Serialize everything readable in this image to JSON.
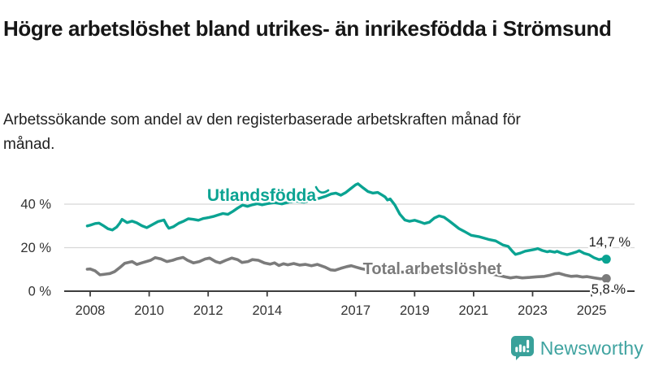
{
  "header": {
    "title": "Högre arbetslöshet bland utrikes- än inrikesfödda i Strömsund",
    "subtitle": "Arbetssökande som andel av den registerbaserade arbetskraften månad för månad."
  },
  "branding": {
    "wordmark": "Newsworthy",
    "logo_icon": "speech-bubble-bar-chart-icon",
    "logo_color": "#39a19a",
    "wordmark_color": "#3fa3a0"
  },
  "chart_data": {
    "type": "line",
    "title": "Högre arbetslöshet bland utrikes- än inrikesfödda i Strömsund",
    "subtitle": "Arbetssökande som andel av den registerbaserade arbetskraften månad för månad.",
    "grid": "horizontal",
    "legend_position": "inline-labels",
    "x_axis": {
      "ticks": [
        2008,
        2010,
        2012,
        2014,
        2017,
        2019,
        2021,
        2023,
        2025
      ],
      "range": [
        2007.1,
        2026.4
      ]
    },
    "y_axis": {
      "unit": "%",
      "tick_values": [
        0,
        20,
        40
      ],
      "tick_labels": [
        "0 %",
        "20 %",
        "40 %"
      ],
      "range": [
        0,
        55
      ]
    },
    "series": [
      {
        "name": "Utlandsfödda",
        "color": "#0aa392",
        "end_value": 14.7,
        "end_label": "14,7 %",
        "points": [
          [
            2007.9,
            30.0
          ],
          [
            2008.0,
            30.3
          ],
          [
            2008.17,
            31.1
          ],
          [
            2008.3,
            31.3
          ],
          [
            2008.45,
            30.1
          ],
          [
            2008.6,
            28.7
          ],
          [
            2008.75,
            28.1
          ],
          [
            2008.9,
            29.5
          ],
          [
            2009.0,
            31.2
          ],
          [
            2009.08,
            33.0
          ],
          [
            2009.25,
            31.5
          ],
          [
            2009.42,
            32.2
          ],
          [
            2009.58,
            31.4
          ],
          [
            2009.75,
            30.1
          ],
          [
            2009.92,
            29.2
          ],
          [
            2010.1,
            30.5
          ],
          [
            2010.3,
            32.0
          ],
          [
            2010.5,
            32.7
          ],
          [
            2010.6,
            30.2
          ],
          [
            2010.67,
            28.9
          ],
          [
            2010.83,
            29.7
          ],
          [
            2011.0,
            31.2
          ],
          [
            2011.17,
            32.2
          ],
          [
            2011.33,
            33.3
          ],
          [
            2011.5,
            33.0
          ],
          [
            2011.67,
            32.6
          ],
          [
            2011.83,
            33.4
          ],
          [
            2012.0,
            33.8
          ],
          [
            2012.17,
            34.3
          ],
          [
            2012.33,
            35.0
          ],
          [
            2012.5,
            35.7
          ],
          [
            2012.67,
            35.3
          ],
          [
            2012.83,
            36.6
          ],
          [
            2013.0,
            38.2
          ],
          [
            2013.17,
            39.6
          ],
          [
            2013.33,
            39.0
          ],
          [
            2013.5,
            39.7
          ],
          [
            2013.67,
            40.2
          ],
          [
            2013.83,
            39.7
          ],
          [
            2014.0,
            40.2
          ],
          [
            2014.25,
            40.7
          ],
          [
            2014.5,
            40.1
          ],
          [
            2014.75,
            41.0
          ],
          [
            2015.0,
            41.4
          ],
          [
            2015.25,
            40.9
          ],
          [
            2015.5,
            41.8
          ],
          [
            2015.75,
            42.6
          ],
          [
            2016.0,
            43.7
          ],
          [
            2016.17,
            44.7
          ],
          [
            2016.33,
            45.1
          ],
          [
            2016.5,
            44.1
          ],
          [
            2016.67,
            45.4
          ],
          [
            2016.83,
            47.1
          ],
          [
            2017.0,
            48.9
          ],
          [
            2017.08,
            49.4
          ],
          [
            2017.25,
            47.5
          ],
          [
            2017.42,
            45.8
          ],
          [
            2017.58,
            45.1
          ],
          [
            2017.75,
            45.4
          ],
          [
            2017.92,
            44.0
          ],
          [
            2018.0,
            43.3
          ],
          [
            2018.08,
            41.9
          ],
          [
            2018.17,
            42.4
          ],
          [
            2018.33,
            39.6
          ],
          [
            2018.5,
            35.4
          ],
          [
            2018.67,
            32.7
          ],
          [
            2018.83,
            32.1
          ],
          [
            2019.0,
            32.6
          ],
          [
            2019.17,
            31.9
          ],
          [
            2019.33,
            31.1
          ],
          [
            2019.5,
            31.7
          ],
          [
            2019.67,
            33.6
          ],
          [
            2019.83,
            34.6
          ],
          [
            2020.0,
            34.0
          ],
          [
            2020.17,
            32.3
          ],
          [
            2020.33,
            30.6
          ],
          [
            2020.5,
            28.8
          ],
          [
            2020.67,
            27.6
          ],
          [
            2020.92,
            25.7
          ],
          [
            2021.17,
            25.1
          ],
          [
            2021.5,
            23.8
          ],
          [
            2021.75,
            23.1
          ],
          [
            2022.0,
            21.2
          ],
          [
            2022.17,
            20.6
          ],
          [
            2022.33,
            18.1
          ],
          [
            2022.42,
            16.9
          ],
          [
            2022.58,
            17.5
          ],
          [
            2022.75,
            18.4
          ],
          [
            2022.92,
            18.8
          ],
          [
            2023.08,
            19.2
          ],
          [
            2023.17,
            19.6
          ],
          [
            2023.33,
            18.7
          ],
          [
            2023.5,
            18.1
          ],
          [
            2023.58,
            18.4
          ],
          [
            2023.75,
            17.9
          ],
          [
            2023.83,
            18.3
          ],
          [
            2024.0,
            17.4
          ],
          [
            2024.17,
            16.8
          ],
          [
            2024.33,
            17.4
          ],
          [
            2024.5,
            18.1
          ],
          [
            2024.58,
            18.6
          ],
          [
            2024.75,
            17.4
          ],
          [
            2024.92,
            16.7
          ],
          [
            2025.08,
            15.4
          ],
          [
            2025.25,
            14.5
          ],
          [
            2025.42,
            15.0
          ],
          [
            2025.5,
            14.7
          ]
        ]
      },
      {
        "name": "Total arbetslöshet",
        "color": "#7b7b7b",
        "end_value": 5.8,
        "end_label": "5,8 %",
        "points": [
          [
            2007.9,
            10.1
          ],
          [
            2008.0,
            10.2
          ],
          [
            2008.17,
            9.3
          ],
          [
            2008.33,
            7.5
          ],
          [
            2008.5,
            7.8
          ],
          [
            2008.67,
            8.1
          ],
          [
            2008.83,
            9.0
          ],
          [
            2009.0,
            10.8
          ],
          [
            2009.17,
            12.8
          ],
          [
            2009.42,
            13.6
          ],
          [
            2009.58,
            12.3
          ],
          [
            2009.75,
            13.0
          ],
          [
            2010.05,
            14.2
          ],
          [
            2010.2,
            15.4
          ],
          [
            2010.4,
            14.8
          ],
          [
            2010.6,
            13.6
          ],
          [
            2010.8,
            14.2
          ],
          [
            2010.95,
            14.9
          ],
          [
            2011.15,
            15.5
          ],
          [
            2011.3,
            14.2
          ],
          [
            2011.5,
            13.0
          ],
          [
            2011.7,
            13.6
          ],
          [
            2011.9,
            14.8
          ],
          [
            2012.05,
            15.2
          ],
          [
            2012.25,
            13.6
          ],
          [
            2012.4,
            13.0
          ],
          [
            2012.6,
            14.2
          ],
          [
            2012.8,
            15.2
          ],
          [
            2013.0,
            14.5
          ],
          [
            2013.15,
            13.2
          ],
          [
            2013.35,
            13.6
          ],
          [
            2013.5,
            14.5
          ],
          [
            2013.7,
            14.2
          ],
          [
            2013.9,
            13.0
          ],
          [
            2014.1,
            12.4
          ],
          [
            2014.25,
            13.0
          ],
          [
            2014.4,
            11.8
          ],
          [
            2014.55,
            12.6
          ],
          [
            2014.7,
            12.1
          ],
          [
            2014.9,
            12.7
          ],
          [
            2015.1,
            12.0
          ],
          [
            2015.3,
            12.3
          ],
          [
            2015.5,
            11.7
          ],
          [
            2015.7,
            12.3
          ],
          [
            2015.95,
            11.1
          ],
          [
            2016.15,
            9.8
          ],
          [
            2016.3,
            9.6
          ],
          [
            2016.5,
            10.5
          ],
          [
            2016.7,
            11.3
          ],
          [
            2016.85,
            11.7
          ],
          [
            2017.0,
            11.1
          ],
          [
            2017.2,
            10.3
          ],
          [
            2017.45,
            9.7
          ],
          [
            2017.7,
            10.4
          ],
          [
            2017.95,
            10.0
          ],
          [
            2018.3,
            9.1
          ],
          [
            2018.6,
            8.7
          ],
          [
            2018.9,
            9.3
          ],
          [
            2019.2,
            8.8
          ],
          [
            2019.5,
            8.4
          ],
          [
            2019.75,
            8.9
          ],
          [
            2020.0,
            9.5
          ],
          [
            2020.25,
            10.9
          ],
          [
            2020.45,
            11.3
          ],
          [
            2020.7,
            10.4
          ],
          [
            2021.0,
            9.6
          ],
          [
            2021.3,
            8.8
          ],
          [
            2021.6,
            7.9
          ],
          [
            2021.9,
            7.1
          ],
          [
            2022.1,
            6.5
          ],
          [
            2022.25,
            6.1
          ],
          [
            2022.45,
            6.5
          ],
          [
            2022.65,
            6.1
          ],
          [
            2022.9,
            6.3
          ],
          [
            2023.15,
            6.6
          ],
          [
            2023.4,
            6.8
          ],
          [
            2023.6,
            7.4
          ],
          [
            2023.75,
            8.0
          ],
          [
            2023.9,
            8.2
          ],
          [
            2024.1,
            7.4
          ],
          [
            2024.3,
            6.8
          ],
          [
            2024.5,
            7.0
          ],
          [
            2024.7,
            6.5
          ],
          [
            2024.85,
            6.7
          ],
          [
            2025.1,
            6.1
          ],
          [
            2025.3,
            5.7
          ],
          [
            2025.5,
            5.8
          ]
        ]
      }
    ]
  }
}
